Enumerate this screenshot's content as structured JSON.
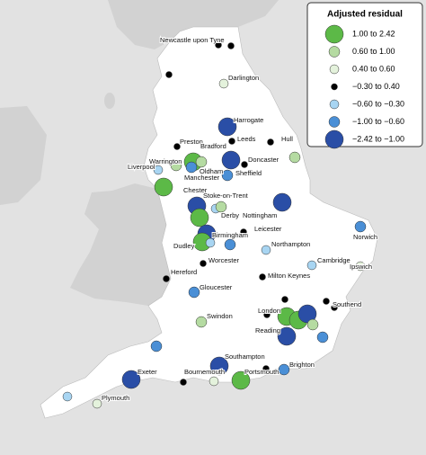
{
  "legend": {
    "title": "Adjusted residual",
    "entries": [
      {
        "label": "1.00 to 2.42",
        "color": "#5cb947"
      },
      {
        "label": "0.60 to 1.00",
        "color": "#b5dba2"
      },
      {
        "label": "0.40 to 0.60",
        "color": "#e4f2dc"
      },
      {
        "label": "−0.30 to 0.40",
        "color": "#000000"
      },
      {
        "label": "−0.60 to −0.30",
        "color": "#a8d5f2"
      },
      {
        "label": "−1.00 to −0.60",
        "color": "#4a8fd6"
      },
      {
        "label": "−2.42 to −1.00",
        "color": "#2a4ea6"
      }
    ]
  },
  "places": [
    "Newcastle upon Tyne",
    "Darlington",
    "Harrogate",
    "Preston",
    "Leeds",
    "Hull",
    "Bradford",
    "Doncaster",
    "Warrington",
    "Liverpool",
    "Oldham",
    "Sheffield",
    "Manchester",
    "Chester",
    "Stoke-on-Trent",
    "Derby",
    "Nottingham",
    "Leicester",
    "Birmingham",
    "Dudley",
    "Norwich",
    "Northampton",
    "Worcester",
    "Cambridge",
    "Ipswich",
    "Hereford",
    "Milton Keynes",
    "Gloucester",
    "Southend",
    "London",
    "Swindon",
    "Reading",
    "Southampton",
    "Brighton",
    "Exeter",
    "Bournemouth",
    "Portsmouth",
    "Plymouth"
  ]
}
